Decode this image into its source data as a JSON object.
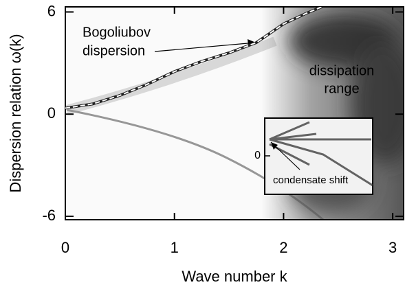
{
  "chart_data": {
    "type": "line",
    "xlabel": "Wave number k",
    "ylabel": "Dispersion relation ω(k)",
    "xlim": [
      0,
      3.1
    ],
    "ylim": [
      -6.2,
      6.3
    ],
    "xticks": [
      0,
      1,
      2,
      3
    ],
    "yticks": [
      -6,
      0,
      6
    ],
    "x": [
      0,
      0.25,
      0.5,
      0.75,
      1,
      1.25,
      1.5,
      1.75,
      2,
      2.2,
      2.35
    ],
    "series": [
      {
        "color": "#ffffff",
        "values": [
          0.35,
          0.6,
          1.1,
          1.75,
          2.5,
          3.1,
          3.6,
          4.2,
          5.3,
          5.9,
          6.3
        ]
      }
    ],
    "annotations": [
      "Bogoliubov",
      "dispersion",
      "dissipation",
      "range",
      "condensate shift"
    ],
    "inset": {
      "yticks": [
        0
      ]
    }
  }
}
